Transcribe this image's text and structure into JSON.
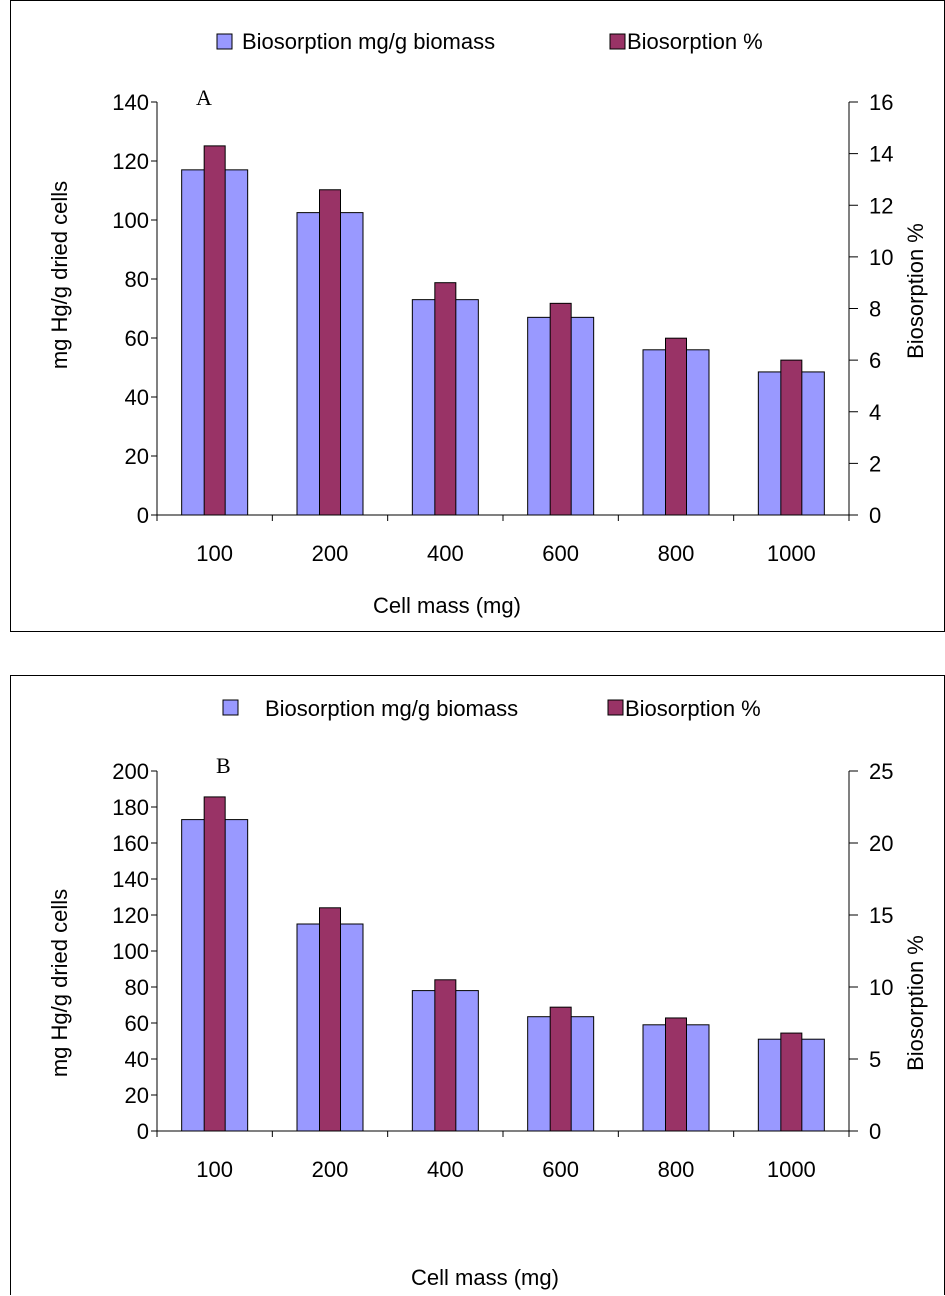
{
  "chart_data": [
    {
      "type": "bar",
      "panel_label": "A",
      "categories": [
        "100",
        "200",
        "400",
        "600",
        "800",
        "1000"
      ],
      "xlabel": "Cell mass (mg)",
      "ylabel": "mg Hg/g dried cells",
      "y2label": "Biosorption %",
      "ylim": [
        0,
        140
      ],
      "y2lim": [
        0,
        16
      ],
      "yticks": [
        "0",
        "20",
        "40",
        "60",
        "80",
        "100",
        "120",
        "140"
      ],
      "y2ticks": [
        "0",
        "2",
        "4",
        "6",
        "8",
        "10",
        "12",
        "14",
        "16"
      ],
      "legend_position": "top",
      "series": [
        {
          "name": "Biosorption mg/g biomass",
          "axis": "left",
          "color": "#9999ff",
          "values": [
            117,
            102.5,
            73,
            67,
            56,
            48.5
          ]
        },
        {
          "name": "Biosorption %",
          "axis": "right",
          "color": "#993366",
          "values": [
            14.3,
            12.6,
            9.0,
            8.2,
            6.85,
            6.0
          ]
        }
      ]
    },
    {
      "type": "bar",
      "panel_label": "B",
      "categories": [
        "100",
        "200",
        "400",
        "600",
        "800",
        "1000"
      ],
      "xlabel": "Cell mass (mg)",
      "ylabel": "mg Hg/g dried cells",
      "y2label": "Biosorption %",
      "ylim": [
        0,
        200
      ],
      "y2lim": [
        0,
        25
      ],
      "yticks": [
        "0",
        "20",
        "40",
        "60",
        "80",
        "100",
        "120",
        "140",
        "160",
        "180",
        "200"
      ],
      "y2ticks": [
        "0",
        "5",
        "10",
        "15",
        "20",
        "25"
      ],
      "legend_position": "top",
      "series": [
        {
          "name": "Biosorption mg/g biomass",
          "axis": "left",
          "color": "#9999ff",
          "values": [
            173,
            115,
            78,
            63.5,
            59,
            51
          ]
        },
        {
          "name": "Biosorption %",
          "axis": "right",
          "color": "#993366",
          "values": [
            23.2,
            15.5,
            10.5,
            8.6,
            7.85,
            6.8
          ]
        }
      ]
    }
  ]
}
